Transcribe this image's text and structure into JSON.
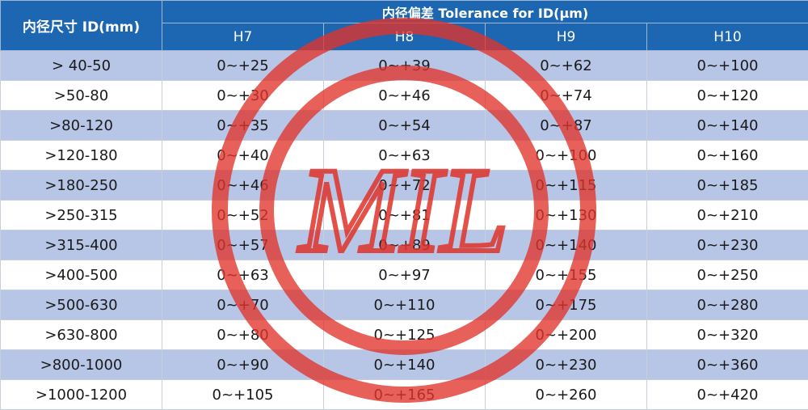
{
  "header": {
    "id_label": "内径尺寸 ID(mm)",
    "group_label": "内径偏差 Tolerance for ID(μm)",
    "grades": [
      "H7",
      "H8",
      "H9",
      "H10"
    ]
  },
  "rows": [
    [
      "> 40-50",
      "0~+25",
      "0~+39",
      "0~+62",
      "0~+100"
    ],
    [
      ">50-80",
      "0~+30",
      "0~+46",
      "0~+74",
      "0~+120"
    ],
    [
      ">80-120",
      "0~+35",
      "0~+54",
      "0~+87",
      "0~+140"
    ],
    [
      ">120-180",
      "0~+40",
      "0~+63",
      "0~+100",
      "0~+160"
    ],
    [
      ">180-250",
      "0~+46",
      "0~+72",
      "0~+115",
      "0~+185"
    ],
    [
      ">250-315",
      "0~+52",
      "0~+81",
      "0~+130",
      "0~+210"
    ],
    [
      ">315-400",
      "0~+57",
      "0~+89",
      "0~+140",
      "0~+230"
    ],
    [
      ">400-500",
      "0~+63",
      "0~+97",
      "0~+155",
      "0~+250"
    ],
    [
      ">500-630",
      "0~+70",
      "0~+110",
      "0~+175",
      "0~+280"
    ],
    [
      ">630-800",
      "0~+80",
      "0~+125",
      "0~+200",
      "0~+320"
    ],
    [
      ">800-1000",
      "0~+90",
      "0~+140",
      "0~+230",
      "0~+360"
    ],
    [
      ">1000-1200",
      "0~+105",
      "0~+165",
      "0~+260",
      "0~+420"
    ]
  ],
  "watermark": {
    "text": "MIL",
    "color": "#e0332a"
  },
  "colors": {
    "header_bg": "#1d66b1",
    "row_shade": "#b7c5e6",
    "row_plain": "#ffffff"
  }
}
